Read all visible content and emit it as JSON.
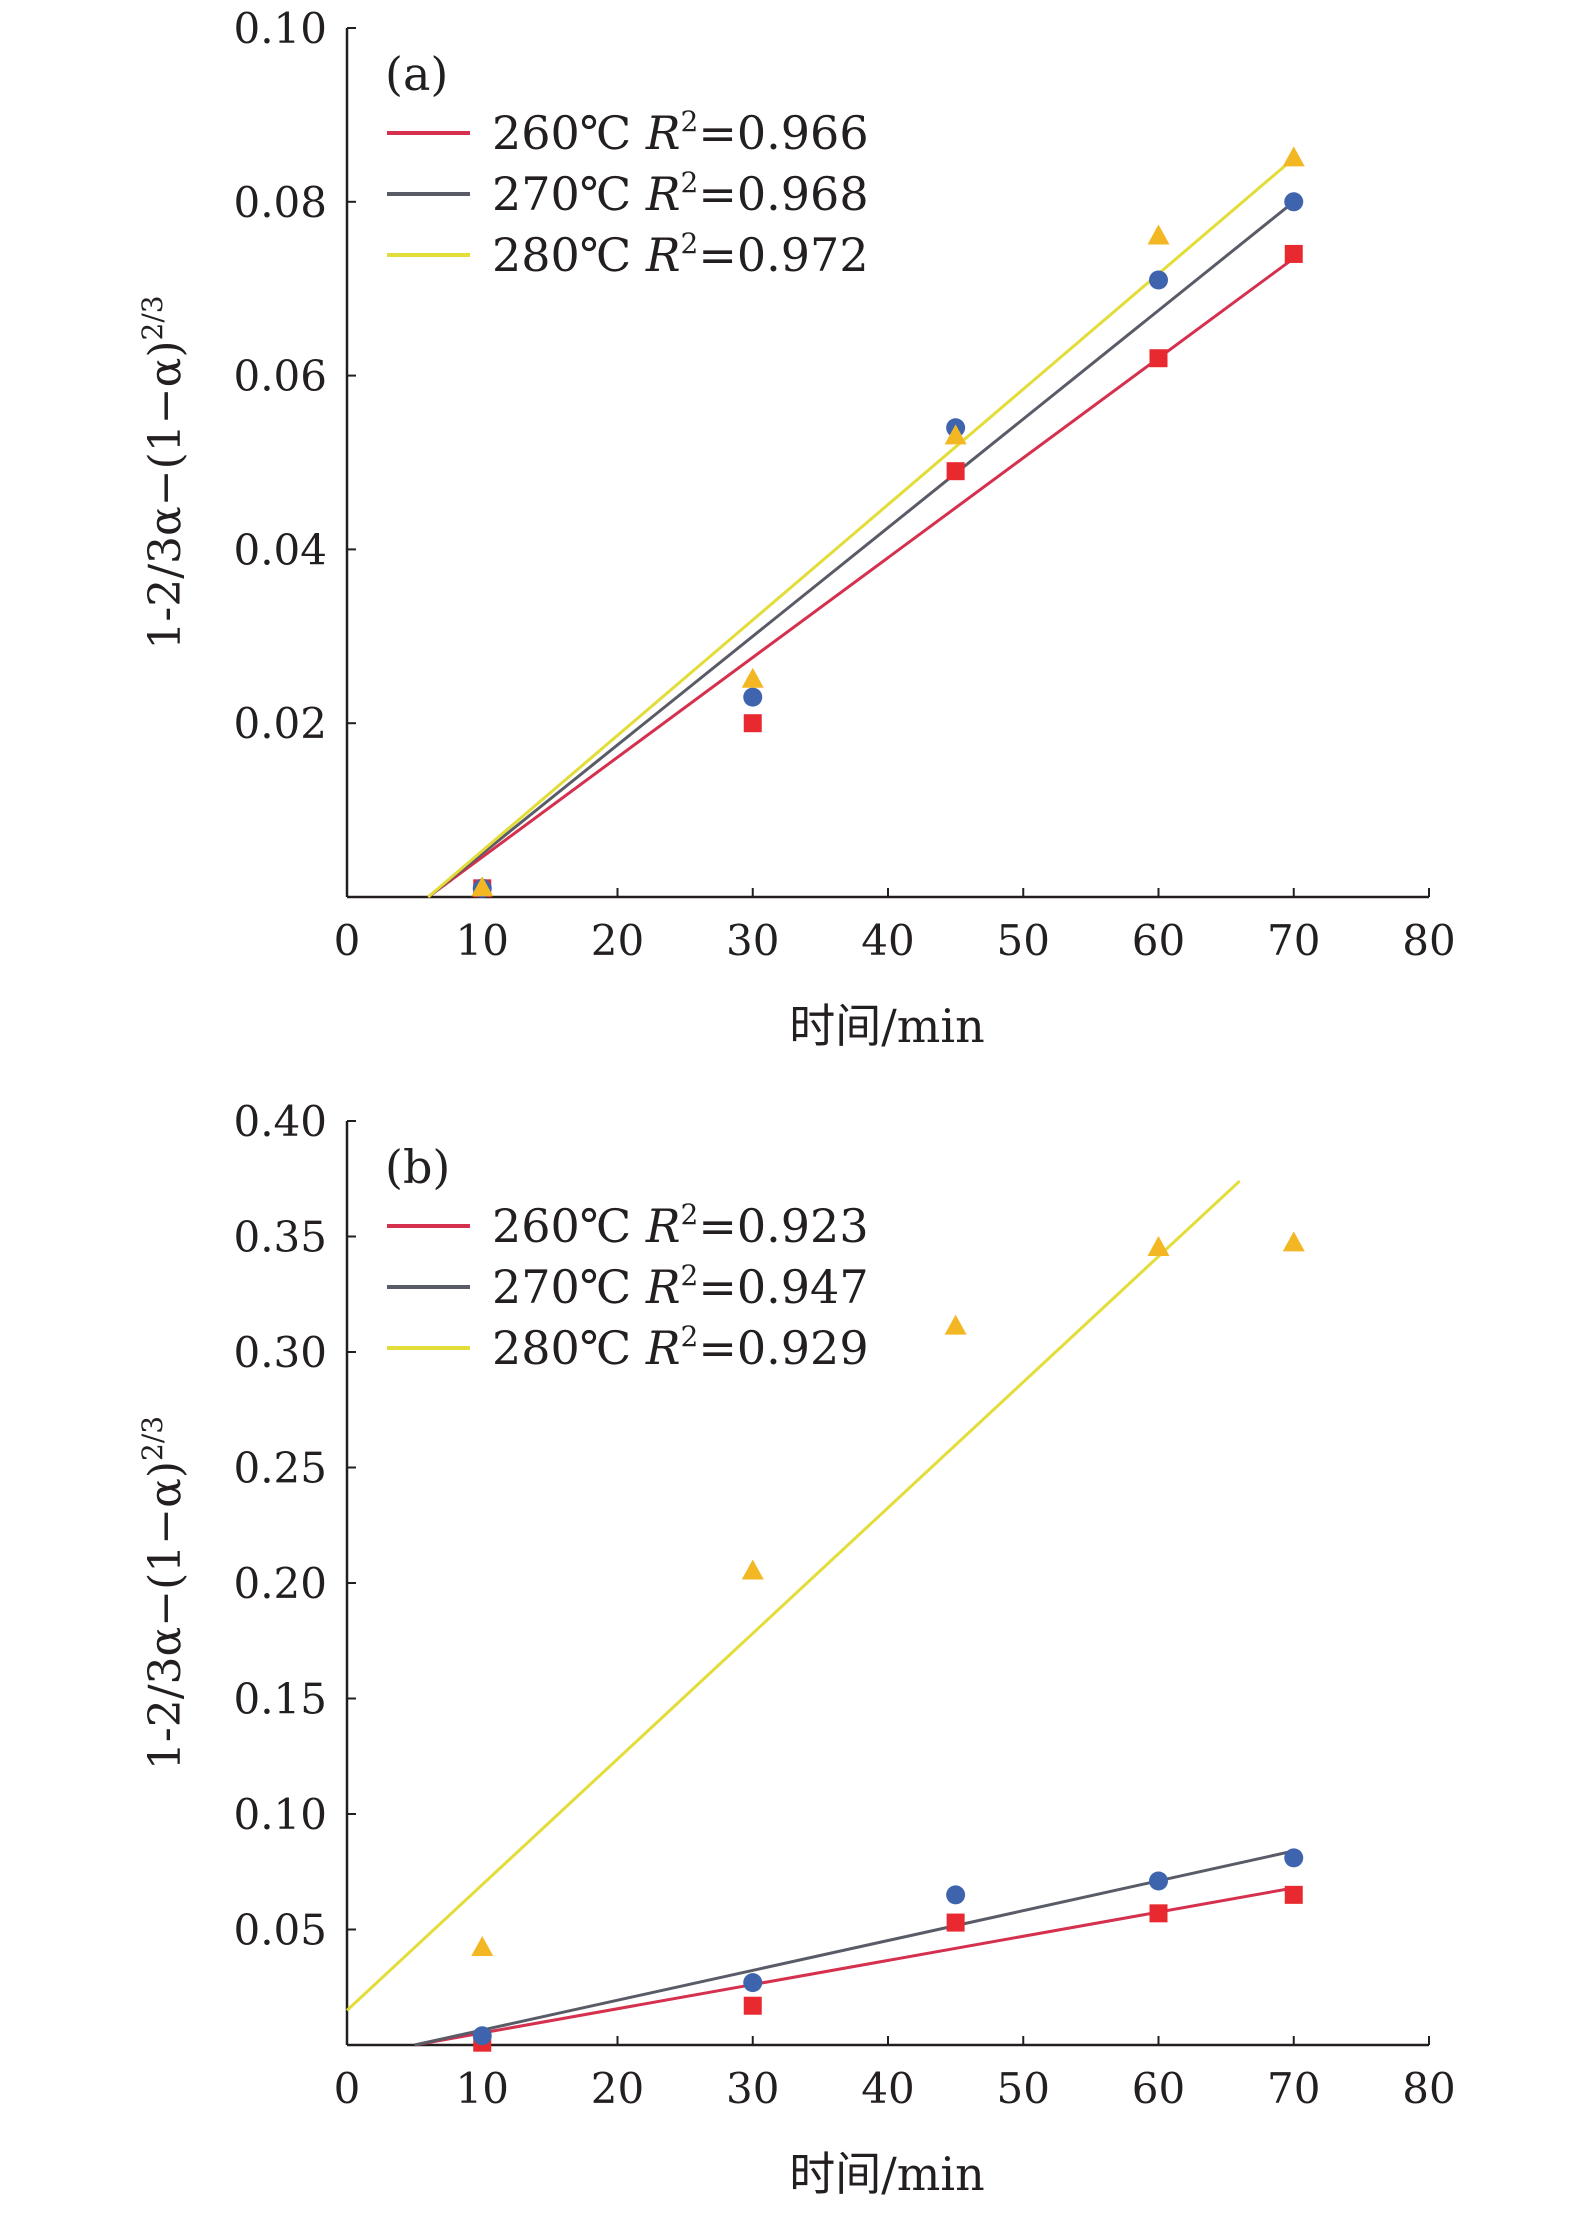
{
  "chart_data": [
    {
      "panel_label": "(a)",
      "type": "scatter",
      "xlabel": "时间/min",
      "ylabel": "1-2/3α−(1−α)2/3",
      "ylabel_parts": {
        "main": "1-2/3α−(1−α)",
        "sup": "2/3"
      },
      "xlim": [
        0,
        80
      ],
      "ylim": [
        0,
        0.1
      ],
      "xticks": [
        "0",
        "10",
        "20",
        "30",
        "40",
        "50",
        "60",
        "70",
        "80"
      ],
      "yticks": [
        "0.02",
        "0.04",
        "0.06",
        "0.08",
        "0.10"
      ],
      "legend_position": "top-left",
      "series": [
        {
          "name": "260℃ R2=0.966",
          "name_parts": {
            "temp": "260℃",
            "r": "R",
            "sup": "2",
            "rest": "=0.966"
          },
          "color": "#d5304d",
          "marker": "square",
          "marker_color": "#e8292f",
          "x": [
            10,
            30,
            45,
            60,
            70
          ],
          "y": [
            0.001,
            0.02,
            0.049,
            0.062,
            0.074
          ],
          "fit": {
            "x": [
              6,
              70
            ],
            "y": [
              0.0,
              0.0735
            ]
          }
        },
        {
          "name": "270℃ R2=0.968",
          "name_parts": {
            "temp": "270℃",
            "r": "R",
            "sup": "2",
            "rest": "=0.968"
          },
          "color": "#595b66",
          "marker": "circle",
          "marker_color": "#3f64ae",
          "x": [
            10,
            30,
            45,
            60,
            70
          ],
          "y": [
            0.001,
            0.023,
            0.054,
            0.071,
            0.08
          ],
          "fit": {
            "x": [
              6,
              70
            ],
            "y": [
              0.0,
              0.08
            ]
          }
        },
        {
          "name": "280℃ R2=0.972",
          "name_parts": {
            "temp": "280℃",
            "r": "R",
            "sup": "2",
            "rest": "=0.972"
          },
          "color": "#e3dd3a",
          "marker": "triangle",
          "marker_color": "#f3b724",
          "x": [
            10,
            30,
            45,
            60,
            70
          ],
          "y": [
            0.001,
            0.025,
            0.053,
            0.076,
            0.085
          ],
          "fit": {
            "x": [
              6,
              70
            ],
            "y": [
              0.0,
              0.085
            ]
          }
        }
      ]
    },
    {
      "panel_label": "(b)",
      "type": "scatter",
      "xlabel": "时间/min",
      "ylabel": "1-2/3α−(1−α)2/3",
      "ylabel_parts": {
        "main": "1-2/3α−(1−α)",
        "sup": "2/3"
      },
      "xlim": [
        0,
        80
      ],
      "ylim": [
        0,
        0.4
      ],
      "xticks": [
        "0",
        "10",
        "20",
        "30",
        "40",
        "50",
        "60",
        "70",
        "80"
      ],
      "yticks": [
        "0.05",
        "0.10",
        "0.15",
        "0.20",
        "0.25",
        "0.30",
        "0.35",
        "0.40"
      ],
      "legend_position": "top-left",
      "series": [
        {
          "name": "260℃ R2=0.923",
          "name_parts": {
            "temp": "260℃",
            "r": "R",
            "sup": "2",
            "rest": "=0.923"
          },
          "color": "#d5304d",
          "marker": "square",
          "marker_color": "#e8292f",
          "x": [
            10,
            30,
            45,
            60,
            70
          ],
          "y": [
            0.001,
            0.017,
            0.053,
            0.057,
            0.065
          ],
          "fit": {
            "x": [
              5,
              70
            ],
            "y": [
              0.0,
              0.068
            ]
          }
        },
        {
          "name": "270℃ R2=0.947",
          "name_parts": {
            "temp": "270℃",
            "r": "R",
            "sup": "2",
            "rest": "=0.947"
          },
          "color": "#595b66",
          "marker": "circle",
          "marker_color": "#3f64ae",
          "x": [
            10,
            30,
            45,
            60,
            70
          ],
          "y": [
            0.004,
            0.027,
            0.065,
            0.071,
            0.081
          ],
          "fit": {
            "x": [
              5,
              70
            ],
            "y": [
              0.0,
              0.084
            ]
          }
        },
        {
          "name": "280℃ R2=0.929",
          "name_parts": {
            "temp": "280℃",
            "r": "R",
            "sup": "2",
            "rest": "=0.929"
          },
          "color": "#e3dd3a",
          "marker": "triangle",
          "marker_color": "#f3b724",
          "x": [
            10,
            30,
            45,
            60,
            70
          ],
          "y": [
            0.042,
            0.205,
            0.311,
            0.345,
            0.347
          ],
          "fit": {
            "x": [
              0,
              66
            ],
            "y": [
              0.015,
              0.374
            ]
          }
        }
      ]
    }
  ]
}
